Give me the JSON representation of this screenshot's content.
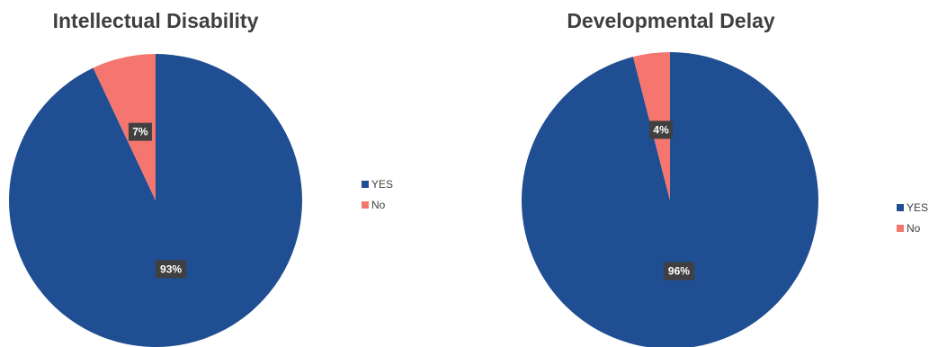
{
  "chart_data": [
    {
      "type": "pie",
      "title": "Intellectual Disability",
      "categories": [
        "YES",
        "No"
      ],
      "values": [
        93,
        7
      ],
      "data_labels": [
        "93%",
        "7%"
      ],
      "colors": [
        "#1F4E92",
        "#F4766E"
      ],
      "legend_position": "right"
    },
    {
      "type": "pie",
      "title": "Developmental Delay",
      "categories": [
        "YES",
        "No"
      ],
      "values": [
        96,
        4
      ],
      "data_labels": [
        "96%",
        "4%"
      ],
      "colors": [
        "#1F4E92",
        "#F4766E"
      ],
      "legend_position": "right"
    }
  ]
}
